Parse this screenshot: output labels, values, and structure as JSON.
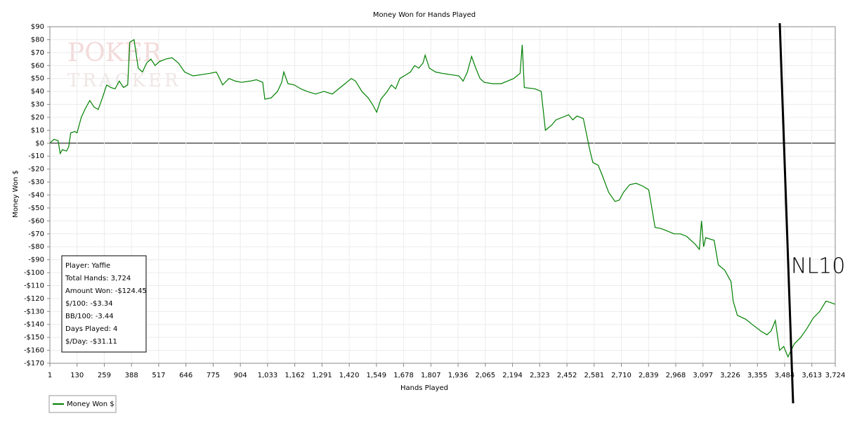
{
  "chart_data": {
    "type": "line",
    "title": "Money Won for Hands Played",
    "xlabel": "Hands Played",
    "ylabel": "Money Won $",
    "grid": true,
    "watermark": [
      "POKER",
      "TRACKER"
    ],
    "annotation": "NL10",
    "stats": [
      "Player: Yaffie",
      "Total Hands: 3,724",
      "Amount Won: -$124.45",
      "$/100: -$3.34",
      "BB/100: -3.44",
      "Days Played: 4",
      "$/Day: -$31.11"
    ],
    "xlim": [
      1,
      3724
    ],
    "ylim": [
      -170,
      90
    ],
    "xticks": [
      1,
      130,
      259,
      388,
      517,
      646,
      775,
      904,
      {
        "value": 1033,
        "label": "1,033"
      },
      {
        "value": 1162,
        "label": "1,162"
      },
      {
        "value": 1291,
        "label": "1,291"
      },
      {
        "value": 1420,
        "label": "1,420"
      },
      {
        "value": 1549,
        "label": "1,549"
      },
      {
        "value": 1678,
        "label": "1,678"
      },
      {
        "value": 1807,
        "label": "1,807"
      },
      {
        "value": 1936,
        "label": "1,936"
      },
      {
        "value": 2065,
        "label": "2,065"
      },
      {
        "value": 2194,
        "label": "2,194"
      },
      {
        "value": 2323,
        "label": "2,323"
      },
      {
        "value": 2452,
        "label": "2,452"
      },
      {
        "value": 2581,
        "label": "2,581"
      },
      {
        "value": 2710,
        "label": "2,710"
      },
      {
        "value": 2839,
        "label": "2,839"
      },
      {
        "value": 2968,
        "label": "2,968"
      },
      {
        "value": 3097,
        "label": "3,097"
      },
      {
        "value": 3226,
        "label": "3,226"
      },
      {
        "value": 3355,
        "label": "3,355"
      },
      {
        "value": 3484,
        "label": "3,484"
      },
      {
        "value": 3613,
        "label": "3,613"
      },
      {
        "value": 3724,
        "label": "3,724"
      }
    ],
    "yticks": [
      {
        "value": 90,
        "label": "$90"
      },
      {
        "value": 80,
        "label": "$80"
      },
      {
        "value": 70,
        "label": "$70"
      },
      {
        "value": 60,
        "label": "$60"
      },
      {
        "value": 50,
        "label": "$50"
      },
      {
        "value": 40,
        "label": "$40"
      },
      {
        "value": 30,
        "label": "$30"
      },
      {
        "value": 20,
        "label": "$20"
      },
      {
        "value": 10,
        "label": "$10"
      },
      {
        "value": 0,
        "label": "$0"
      },
      {
        "value": -10,
        "label": "-$10"
      },
      {
        "value": -20,
        "label": "-$20"
      },
      {
        "value": -30,
        "label": "-$30"
      },
      {
        "value": -40,
        "label": "-$40"
      },
      {
        "value": -50,
        "label": "-$50"
      },
      {
        "value": -60,
        "label": "-$60"
      },
      {
        "value": -70,
        "label": "-$70"
      },
      {
        "value": -80,
        "label": "-$80"
      },
      {
        "value": -90,
        "label": "-$90"
      },
      {
        "value": -100,
        "label": "-$100"
      },
      {
        "value": -110,
        "label": "-$110"
      },
      {
        "value": -120,
        "label": "-$120"
      },
      {
        "value": -130,
        "label": "-$130"
      },
      {
        "value": -140,
        "label": "-$140"
      },
      {
        "value": -150,
        "label": "-$150"
      },
      {
        "value": -160,
        "label": "-$160"
      },
      {
        "value": -170,
        "label": "-$170"
      }
    ],
    "x": [
      1,
      20,
      40,
      50,
      60,
      80,
      90,
      100,
      120,
      130,
      150,
      170,
      190,
      210,
      230,
      250,
      270,
      290,
      310,
      330,
      350,
      370,
      380,
      400,
      420,
      440,
      460,
      480,
      500,
      520,
      550,
      580,
      610,
      640,
      680,
      720,
      760,
      790,
      800,
      820,
      850,
      880,
      910,
      950,
      980,
      1010,
      1020,
      1050,
      1080,
      1100,
      1110,
      1130,
      1160,
      1190,
      1220,
      1260,
      1300,
      1340,
      1370,
      1400,
      1430,
      1450,
      1480,
      1510,
      1530,
      1550,
      1570,
      1600,
      1620,
      1640,
      1660,
      1690,
      1710,
      1730,
      1750,
      1770,
      1780,
      1800,
      1830,
      1860,
      1900,
      1940,
      1960,
      1980,
      2000,
      2020,
      2040,
      2060,
      2100,
      2140,
      2170,
      2200,
      2230,
      2240,
      2250,
      2300,
      2330,
      2350,
      2380,
      2400,
      2430,
      2460,
      2480,
      2500,
      2530,
      2560,
      2575,
      2600,
      2620,
      2650,
      2680,
      2700,
      2720,
      2750,
      2780,
      2810,
      2840,
      2870,
      2900,
      2930,
      2960,
      2990,
      3020,
      3060,
      3080,
      3090,
      3100,
      3110,
      3150,
      3170,
      3200,
      3230,
      3240,
      3260,
      3300,
      3330,
      3370,
      3400,
      3420,
      3440,
      3460,
      3480,
      3500,
      3530,
      3560,
      3590,
      3620,
      3650,
      3680,
      3700,
      3724
    ],
    "series": [
      {
        "name": "Money Won $",
        "color": "#008000",
        "values": [
          0,
          3,
          2,
          -8,
          -5,
          -6,
          -3,
          8,
          9,
          8,
          20,
          27,
          33,
          28,
          26,
          35,
          45,
          43,
          42,
          48,
          43,
          45,
          78,
          80,
          58,
          55,
          62,
          65,
          60,
          63,
          65,
          66,
          62,
          55,
          52,
          53,
          54,
          55,
          52,
          45,
          50,
          48,
          47,
          48,
          49,
          47,
          34,
          35,
          40,
          47,
          55,
          46,
          45,
          42,
          40,
          38,
          40,
          38,
          42,
          46,
          50,
          48,
          40,
          35,
          30,
          24,
          34,
          40,
          45,
          42,
          50,
          53,
          55,
          60,
          58,
          62,
          68,
          58,
          55,
          54,
          53,
          52,
          48,
          55,
          67,
          58,
          50,
          47,
          46,
          46,
          48,
          50,
          54,
          76,
          43,
          42,
          40,
          10,
          14,
          18,
          20,
          22,
          18,
          21,
          19,
          -5,
          -15,
          -17,
          -25,
          -38,
          -45,
          -44,
          -38,
          -32,
          -31,
          -33,
          -36,
          -65,
          -66,
          -68,
          -70,
          -70,
          -72,
          -78,
          -82,
          -60,
          -80,
          -73,
          -75,
          -94,
          -98,
          -107,
          -122,
          -133,
          -136,
          -140,
          -145,
          -148,
          -145,
          -137,
          -160,
          -157,
          -165,
          -155,
          -150,
          -143,
          -135,
          -130,
          -122,
          -123,
          -124.45
        ]
      }
    ]
  }
}
